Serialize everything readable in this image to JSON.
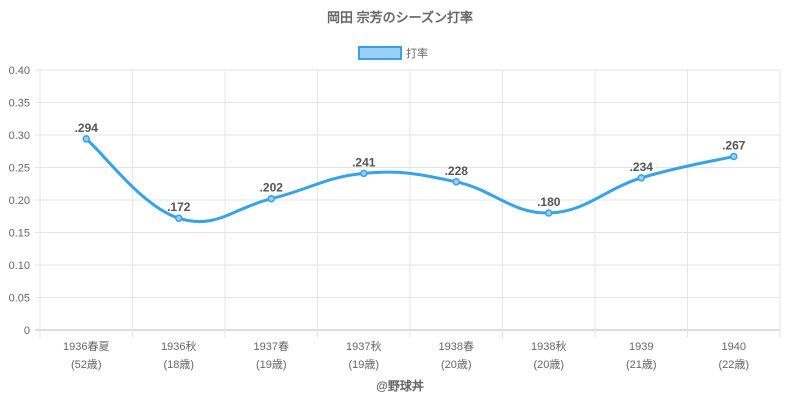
{
  "chart_data": {
    "type": "line",
    "title": "岡田 宗芳のシーズン打率",
    "legend": {
      "label": "打率",
      "placement": "top-center"
    },
    "categories": [
      "1936春夏",
      "1936秋",
      "1937春",
      "1937秋",
      "1938春",
      "1938秋",
      "1939",
      "1940"
    ],
    "sublabels": [
      "(52歳)",
      "(18歳)",
      "(19歳)",
      "(19歳)",
      "(20歳)",
      "(20歳)",
      "(21歳)",
      "(22歳)"
    ],
    "series": [
      {
        "name": "打率",
        "values": [
          0.294,
          0.172,
          0.202,
          0.241,
          0.228,
          0.18,
          0.234,
          0.267
        ]
      }
    ],
    "data_labels": [
      ".294",
      ".172",
      ".202",
      ".241",
      ".228",
      ".180",
      ".234",
      ".267"
    ],
    "yticks": [
      "0",
      "0.05",
      "0.10",
      "0.15",
      "0.20",
      "0.25",
      "0.30",
      "0.35",
      "0.40"
    ],
    "ylim": [
      0,
      0.4
    ],
    "grid": true,
    "line_color": "#36a2eb",
    "fill_color": "#9ad0f5",
    "credit": "@野球丼"
  }
}
